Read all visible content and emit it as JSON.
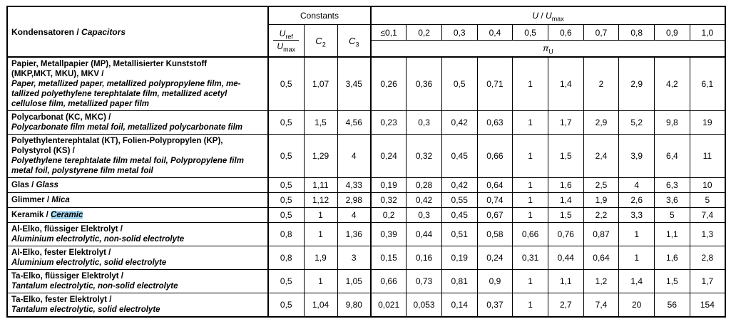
{
  "table": {
    "header": {
      "capacitors_de": "Kondensatoren /",
      "capacitors_en": "Capacitors",
      "constants": "Constants",
      "ratio": {
        "num_base": "U",
        "num_sub": "ref",
        "den_base": "U",
        "den_sub": "max"
      },
      "c2": {
        "base": "C",
        "sub": "2"
      },
      "c3": {
        "base": "C",
        "sub": "3"
      },
      "u_umax": {
        "left": "U",
        "slash": " / ",
        "right": "U",
        "right_sub": "max"
      },
      "u_ticks": [
        "≤0,1",
        "0,2",
        "0,3",
        "0,4",
        "0,5",
        "0,6",
        "0,7",
        "0,8",
        "0,9",
        "1,0"
      ],
      "pi": {
        "base": "π",
        "sub": "U"
      }
    },
    "rows": [
      {
        "name_de": "Papier, Metallpapier (MP), Metallisierter Kunststoff\n(MKP,MKT, MKU), MKV /",
        "name_en": "Paper, metallized paper, metallized polypropylene film, me-\ntallized polyethylene terephtalate film, metallized acetyl\ncellulose film, metallized paper film",
        "layout": "stacked",
        "highlight_en": false,
        "uref_umax": "0,5",
        "c2": "1,07",
        "c3": "3,45",
        "pi": [
          "0,26",
          "0,36",
          "0,5",
          "0,71",
          "1",
          "1,4",
          "2",
          "2,9",
          "4,2",
          "6,1"
        ]
      },
      {
        "name_de": "Polycarbonat (KC, MKC) /",
        "name_en": "Polycarbonate film metal foil, metallized polycarbonate film",
        "layout": "stacked",
        "highlight_en": false,
        "uref_umax": "0,5",
        "c2": "1,5",
        "c3": "4,56",
        "pi": [
          "0,23",
          "0,3",
          "0,42",
          "0,63",
          "1",
          "1,7",
          "2,9",
          "5,2",
          "9,8",
          "19"
        ]
      },
      {
        "name_de": "Polyethylenterephtalat (KT), Folien-Polypropylen (KP),\nPolystyrol (KS) /",
        "name_en": "Polyethylene terephtalate film metal foil, Polypropylene film\nmetal foil, polystyrene film metal foil",
        "layout": "stacked",
        "highlight_en": false,
        "uref_umax": "0,5",
        "c2": "1,29",
        "c3": "4",
        "pi": [
          "0,24",
          "0,32",
          "0,45",
          "0,66",
          "1",
          "1,5",
          "2,4",
          "3,9",
          "6,4",
          "11"
        ]
      },
      {
        "name_de": "Glas /",
        "name_en": "Glass",
        "layout": "inline",
        "highlight_en": false,
        "uref_umax": "0,5",
        "c2": "1,11",
        "c3": "4,33",
        "pi": [
          "0,19",
          "0,28",
          "0,42",
          "0,64",
          "1",
          "1,6",
          "2,5",
          "4",
          "6,3",
          "10"
        ]
      },
      {
        "name_de": "Glimmer /",
        "name_en": "Mica",
        "layout": "inline",
        "highlight_en": false,
        "uref_umax": "0,5",
        "c2": "1,12",
        "c3": "2,98",
        "pi": [
          "0,32",
          "0,42",
          "0,55",
          "0,74",
          "1",
          "1,4",
          "1,9",
          "2,6",
          "3,6",
          "5"
        ]
      },
      {
        "name_de": "Keramik /",
        "name_en": "Ceramic",
        "layout": "inline",
        "highlight_en": true,
        "uref_umax": "0,5",
        "c2": "1",
        "c3": "4",
        "pi": [
          "0,2",
          "0,3",
          "0,45",
          "0,67",
          "1",
          "1,5",
          "2,2",
          "3,3",
          "5",
          "7,4"
        ]
      },
      {
        "name_de": "Al-Elko, flüssiger Elektrolyt /",
        "name_en": "Aluminium electrolytic, non-solid electrolyte",
        "layout": "stacked",
        "highlight_en": false,
        "uref_umax": "0,8",
        "c2": "1",
        "c3": "1,36",
        "pi": [
          "0,39",
          "0,44",
          "0,51",
          "0,58",
          "0,66",
          "0,76",
          "0,87",
          "1",
          "1,1",
          "1,3"
        ]
      },
      {
        "name_de": "Al-Elko, fester Elektrolyt /",
        "name_en": "Aluminium electrolytic, solid electrolyte",
        "layout": "stacked",
        "highlight_en": false,
        "uref_umax": "0,8",
        "c2": "1,9",
        "c3": "3",
        "pi": [
          "0,15",
          "0,16",
          "0,19",
          "0,24",
          "0,31",
          "0,44",
          "0,64",
          "1",
          "1,6",
          "2,8"
        ]
      },
      {
        "name_de": "Ta-Elko, flüssiger Elektrolyt /",
        "name_en": "Tantalum electrolytic, non-solid electrolyte",
        "layout": "stacked",
        "highlight_en": false,
        "uref_umax": "0,5",
        "c2": "1",
        "c3": "1,05",
        "pi": [
          "0,66",
          "0,73",
          "0,81",
          "0,9",
          "1",
          "1,1",
          "1,2",
          "1,4",
          "1,5",
          "1,7"
        ]
      },
      {
        "name_de": "Ta-Elko, fester Elektrolyt /",
        "name_en": "Tantalum electrolytic, solid electrolyte",
        "layout": "stacked",
        "highlight_en": false,
        "uref_umax": "0,5",
        "c2": "1,04",
        "c3": "9,80",
        "pi": [
          "0,021",
          "0,053",
          "0,14",
          "0,37",
          "1",
          "2,7",
          "7,4",
          "20",
          "56",
          "154"
        ]
      }
    ]
  },
  "colors": {
    "ceramic_highlight": "#a5d8f3",
    "border": "#000000",
    "page_background": "#ffffff"
  }
}
